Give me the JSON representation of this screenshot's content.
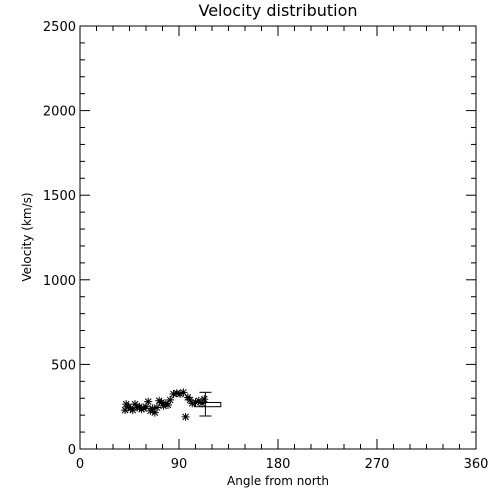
{
  "chart_data": {
    "type": "scatter",
    "title": "Velocity distribution",
    "xlabel": "Angle from north",
    "ylabel": "Velocity (km/s)",
    "xlim": [
      0,
      360
    ],
    "ylim": [
      0,
      2500
    ],
    "xticks": [
      0,
      90,
      180,
      270,
      360
    ],
    "yticks": [
      0,
      500,
      1000,
      1500,
      2000,
      2500
    ],
    "grid": false,
    "marker": "asterisk",
    "points": [
      {
        "x": 41,
        "y": 230
      },
      {
        "x": 42,
        "y": 265
      },
      {
        "x": 44,
        "y": 250
      },
      {
        "x": 46,
        "y": 240
      },
      {
        "x": 48,
        "y": 230
      },
      {
        "x": 50,
        "y": 265
      },
      {
        "x": 52,
        "y": 245
      },
      {
        "x": 54,
        "y": 250
      },
      {
        "x": 56,
        "y": 235
      },
      {
        "x": 58,
        "y": 240
      },
      {
        "x": 60,
        "y": 250
      },
      {
        "x": 62,
        "y": 280
      },
      {
        "x": 64,
        "y": 225
      },
      {
        "x": 66,
        "y": 240
      },
      {
        "x": 68,
        "y": 215
      },
      {
        "x": 70,
        "y": 245
      },
      {
        "x": 72,
        "y": 285
      },
      {
        "x": 74,
        "y": 275
      },
      {
        "x": 76,
        "y": 255
      },
      {
        "x": 78,
        "y": 270
      },
      {
        "x": 80,
        "y": 260
      },
      {
        "x": 82,
        "y": 290
      },
      {
        "x": 85,
        "y": 325
      },
      {
        "x": 88,
        "y": 330
      },
      {
        "x": 91,
        "y": 325
      },
      {
        "x": 94,
        "y": 335
      },
      {
        "x": 96,
        "y": 190
      },
      {
        "x": 98,
        "y": 305
      },
      {
        "x": 100,
        "y": 290
      },
      {
        "x": 102,
        "y": 270
      },
      {
        "x": 105,
        "y": 275
      },
      {
        "x": 108,
        "y": 285
      },
      {
        "x": 111,
        "y": 270
      },
      {
        "x": 113,
        "y": 295
      }
    ],
    "summary": {
      "box": {
        "x_min": 104,
        "x_max": 128,
        "y_min": 250,
        "y_max": 275
      },
      "error_bar": {
        "x": 114,
        "y_min": 195,
        "y_max": 335
      }
    }
  }
}
